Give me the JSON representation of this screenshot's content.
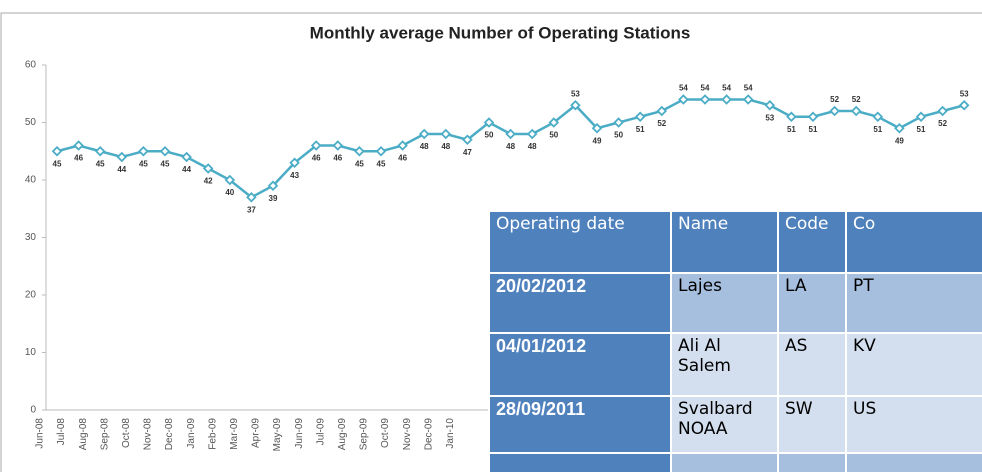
{
  "chart_data": {
    "type": "line",
    "title": "Monthly average Number of Operating Stations",
    "categories": [
      "Jun-08",
      "Jul-08",
      "Aug-08",
      "Sep-08",
      "Oct-08",
      "Nov-08",
      "Dec-08",
      "Jan-09",
      "Feb-09",
      "Mar-09",
      "Apr-09",
      "May-09",
      "Jun-09",
      "Jul-09",
      "Aug-09",
      "Sep-09",
      "Oct-09",
      "Nov-09",
      "Dec-09",
      "Jan-10",
      null,
      null,
      null,
      null,
      null,
      null,
      null,
      null,
      null,
      null,
      null,
      null,
      null,
      null,
      null,
      null,
      null,
      null,
      null,
      null,
      null,
      null,
      null
    ],
    "values": [
      45,
      46,
      45,
      44,
      45,
      45,
      44,
      42,
      40,
      37,
      39,
      43,
      46,
      46,
      45,
      45,
      46,
      48,
      48,
      47,
      50,
      48,
      48,
      50,
      53,
      49,
      50,
      51,
      52,
      54,
      54,
      54,
      54,
      53,
      51,
      51,
      52,
      52,
      51,
      49,
      51,
      52,
      53
    ],
    "color": "#4bacc6",
    "ylim": [
      0,
      60
    ],
    "yticks": [
      0,
      10,
      20,
      30,
      40,
      50,
      60
    ],
    "grid": false
  },
  "table": {
    "header": [
      "Operating date",
      "Name",
      "Code",
      "Co"
    ],
    "rows": [
      [
        "20/02/2012",
        "Lajes",
        "LA",
        "PT"
      ],
      [
        "04/01/2012",
        "Ali Al Salem",
        "AS",
        "KV"
      ],
      [
        "28/09/2011",
        "Svalbard NOAA",
        "SW",
        "US"
      ]
    ]
  }
}
